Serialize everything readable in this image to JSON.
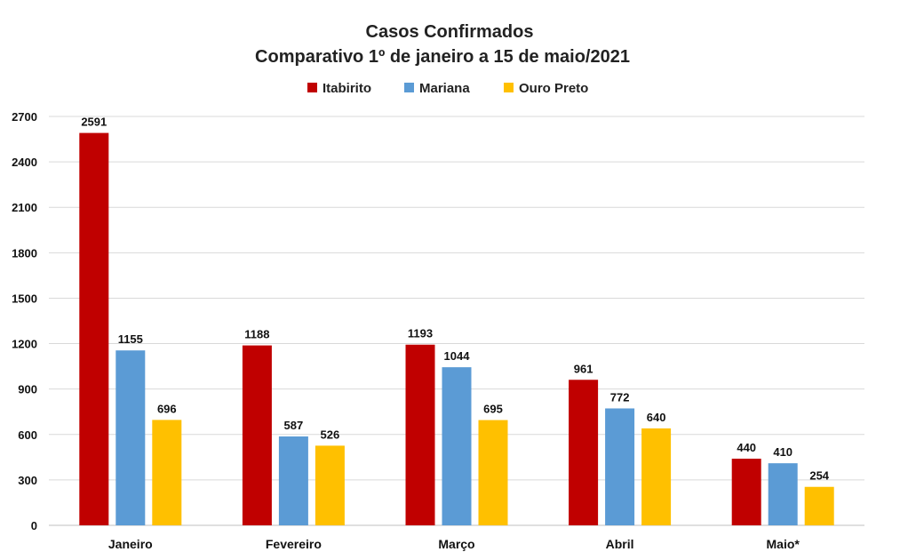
{
  "chart_data": {
    "type": "bar",
    "title": "Casos Confirmados",
    "subtitle": "Comparativo 1º de janeiro a 15 de maio/2021",
    "categories": [
      "Janeiro",
      "Fevereiro",
      "Março",
      "Abril",
      "Maio*"
    ],
    "series": [
      {
        "name": "Itabirito",
        "color": "#C00000",
        "values": [
          2591,
          1188,
          1193,
          961,
          440
        ]
      },
      {
        "name": "Mariana",
        "color": "#5B9BD5",
        "values": [
          1155,
          587,
          1044,
          772,
          410
        ]
      },
      {
        "name": "Ouro Preto",
        "color": "#FFC000",
        "values": [
          696,
          526,
          695,
          640,
          254
        ]
      }
    ],
    "ylim": [
      0,
      2700
    ],
    "yticks": [
      0,
      300,
      600,
      900,
      1200,
      1500,
      1800,
      2100,
      2400,
      2700
    ],
    "xlabel": "",
    "ylabel": "",
    "grid": true,
    "legend_position": "top-center",
    "data_labels": true
  }
}
